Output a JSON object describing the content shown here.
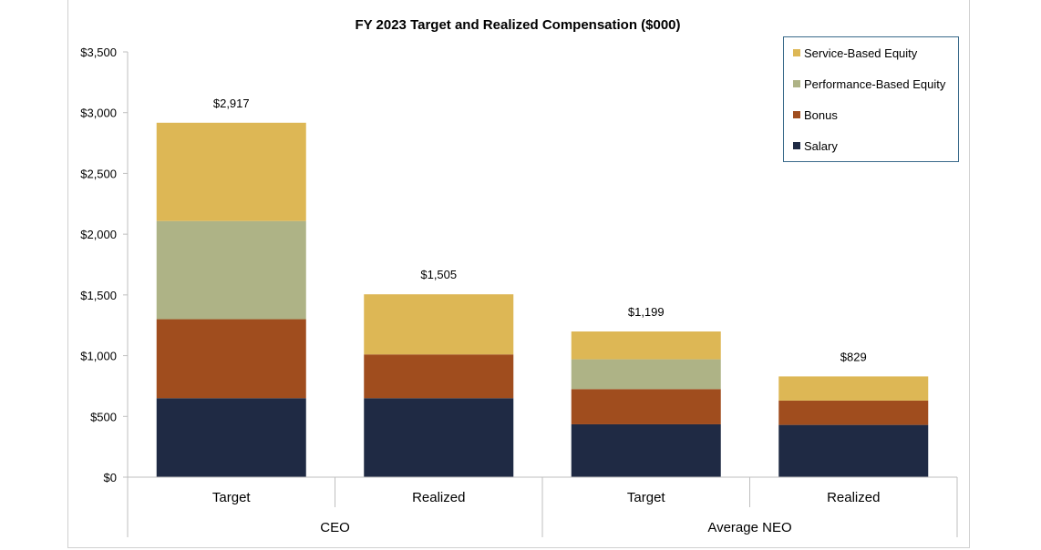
{
  "chart_data": {
    "type": "bar",
    "stacked": true,
    "title": "FY 2023 Target and Realized Compensation ($000)",
    "xlabel": "",
    "ylabel": "",
    "ylim": [
      0,
      3500
    ],
    "yticks": [
      0,
      500,
      1000,
      1500,
      2000,
      2500,
      3000,
      3500
    ],
    "ytick_labels": [
      "$0",
      "$500",
      "$1,000",
      "$1,500",
      "$2,000",
      "$2,500",
      "$3,000",
      "$3,500"
    ],
    "categories": [
      "Target",
      "Realized",
      "Target",
      "Realized"
    ],
    "groups": [
      {
        "label": "CEO",
        "span": [
          0,
          1
        ]
      },
      {
        "label": "Average NEO",
        "span": [
          2,
          3
        ]
      }
    ],
    "series": [
      {
        "name": "Salary",
        "color": "#1f2a44",
        "values": [
          650,
          650,
          435,
          430
        ]
      },
      {
        "name": "Bonus",
        "color": "#a04d1e",
        "values": [
          650,
          360,
          290,
          200
        ]
      },
      {
        "name": "Performance-Based Equity",
        "color": "#aeb386",
        "values": [
          808,
          0,
          245,
          0
        ]
      },
      {
        "name": "Service-Based Equity",
        "color": "#ddb755",
        "values": [
          809,
          495,
          229,
          199
        ]
      }
    ],
    "totals": [
      2917,
      1505,
      1199,
      829
    ],
    "total_labels": [
      "$2,917",
      "$1,505",
      "$1,199",
      "$829"
    ],
    "legend": {
      "position": "top-right",
      "entries": [
        "Service-Based Equity",
        "Performance-Based Equity",
        "Bonus",
        "Salary"
      ]
    }
  }
}
